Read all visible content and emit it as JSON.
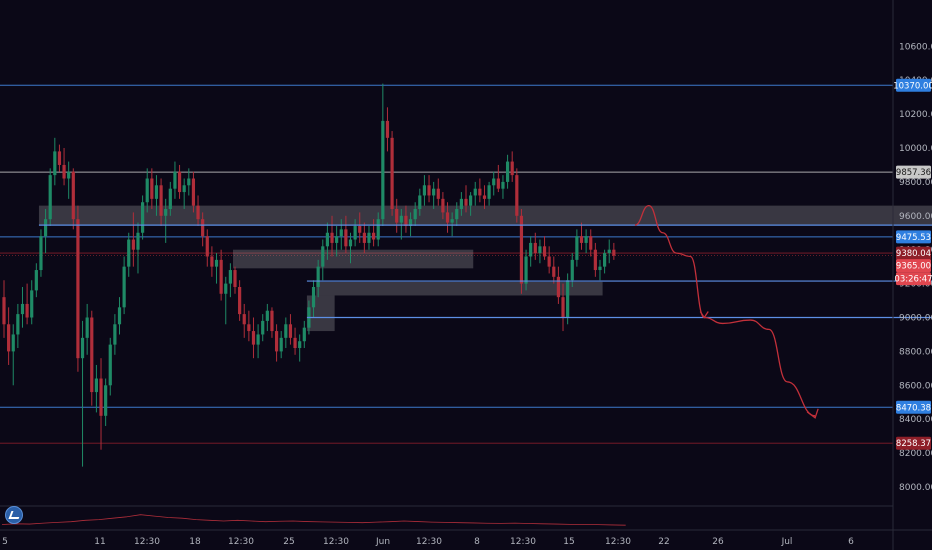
{
  "colors": {
    "background": "#0b0817",
    "up": "#1f8a66",
    "down": "#b02e3a",
    "blue_line": "#3f7fd6",
    "gray_line": "#c5c5c5",
    "red_line": "#8a1f2a",
    "zone": "#9a9aa0",
    "projection": "#c2303a"
  },
  "chart_data": {
    "type": "candlestick",
    "title": "",
    "y_axis": {
      "side": "right",
      "range": [
        7850,
        10720
      ],
      "ticks": [
        8000,
        8200,
        8400,
        8600,
        8800,
        9000,
        9200,
        9400,
        9600,
        9800,
        10000,
        10200,
        10400,
        10600
      ],
      "tick_labels": [
        "8000.00",
        "8200.00",
        "8400.00",
        "8600.00",
        "8800.00",
        "9000.00",
        "9200.00",
        "9400.00",
        "9600.00",
        "9800.00",
        "10000.00",
        "10200.00",
        "10400.00",
        "10600.00"
      ]
    },
    "x_axis": {
      "tick_labels": [
        "5",
        "11",
        "12:30",
        "18",
        "12:30",
        "25",
        "12:30",
        "Jun",
        "12:30",
        "8",
        "12:30",
        "15",
        "12:30",
        "22",
        "26",
        "Jul",
        "6"
      ]
    },
    "price_levels": [
      {
        "value": 10370.0,
        "label": "10370.00",
        "style": "blue"
      },
      {
        "value": 9857.36,
        "label": "9857.36",
        "style": "gray"
      },
      {
        "value": 9475.53,
        "label": "9475.53",
        "style": "blue"
      },
      {
        "value": 9380.04,
        "label": "9380.04",
        "style": "red"
      },
      {
        "value": 8470.38,
        "label": "8470.38",
        "style": "blue"
      },
      {
        "value": 8258.37,
        "label": "8258.37",
        "style": "red"
      }
    ],
    "current_price": {
      "value": 9365.0,
      "label": "9365.00",
      "countdown": "03:26:47"
    },
    "drawn_lines": [
      {
        "from_index": 8,
        "to_index": 205,
        "value": 9545
      },
      {
        "from_index": 66,
        "to_index": 205,
        "value": 9215
      },
      {
        "from_index": 66,
        "to_index": 205,
        "value": 9000
      }
    ],
    "zones": [
      {
        "from_index": 8,
        "to_index": 204,
        "low": 9545,
        "high": 9660
      },
      {
        "from_index": 50,
        "to_index": 102,
        "low": 9290,
        "high": 9400
      },
      {
        "from_index": 68,
        "to_index": 130,
        "low": 9130,
        "high": 9210
      },
      {
        "from_index": 66,
        "to_index": 72,
        "low": 8920,
        "high": 9130
      }
    ],
    "projection_path": [
      {
        "i": 137,
        "v": 9545
      },
      {
        "i": 140,
        "v": 9660
      },
      {
        "i": 143,
        "v": 9500
      },
      {
        "i": 146,
        "v": 9380
      },
      {
        "i": 149,
        "v": 9360
      },
      {
        "i": 152,
        "v": 9000
      },
      {
        "i": 156,
        "v": 8965
      },
      {
        "i": 162,
        "v": 8985
      },
      {
        "i": 166,
        "v": 8930
      },
      {
        "i": 170,
        "v": 8620
      },
      {
        "i": 176,
        "v": 8420
      }
    ],
    "candles": [
      [
        9120,
        9220,
        8880,
        8960
      ],
      [
        8960,
        9060,
        8720,
        8800
      ],
      [
        8800,
        8960,
        8600,
        8900
      ],
      [
        8900,
        9080,
        8820,
        9020
      ],
      [
        9020,
        9180,
        8940,
        9080
      ],
      [
        9080,
        9200,
        8960,
        9000
      ],
      [
        9000,
        9220,
        8960,
        9160
      ],
      [
        9160,
        9320,
        9120,
        9280
      ],
      [
        9280,
        9520,
        9240,
        9480
      ],
      [
        9480,
        9640,
        9380,
        9580
      ],
      [
        9580,
        9880,
        9540,
        9840
      ],
      [
        9840,
        10060,
        9780,
        9980
      ],
      [
        9980,
        10020,
        9860,
        9900
      ],
      [
        9900,
        10000,
        9780,
        9820
      ],
      [
        9820,
        9920,
        9700,
        9860
      ],
      [
        9860,
        9880,
        9520,
        9580
      ],
      [
        9580,
        9660,
        8680,
        8760
      ],
      [
        8760,
        8980,
        8120,
        8880
      ],
      [
        8880,
        9080,
        8780,
        9000
      ],
      [
        9000,
        9040,
        8480,
        8560
      ],
      [
        8560,
        8720,
        8440,
        8640
      ],
      [
        8640,
        8760,
        8220,
        8420
      ],
      [
        8420,
        8640,
        8360,
        8600
      ],
      [
        8600,
        8880,
        8540,
        8840
      ],
      [
        8840,
        9020,
        8780,
        8960
      ],
      [
        8960,
        9120,
        8900,
        9060
      ],
      [
        9060,
        9360,
        9020,
        9300
      ],
      [
        9300,
        9500,
        9240,
        9460
      ],
      [
        9460,
        9620,
        9300,
        9400
      ],
      [
        9400,
        9560,
        9260,
        9500
      ],
      [
        9500,
        9720,
        9460,
        9680
      ],
      [
        9680,
        9880,
        9620,
        9820
      ],
      [
        9820,
        9880,
        9640,
        9700
      ],
      [
        9700,
        9840,
        9600,
        9780
      ],
      [
        9780,
        9820,
        9540,
        9600
      ],
      [
        9600,
        9700,
        9440,
        9640
      ],
      [
        9640,
        9800,
        9600,
        9760
      ],
      [
        9760,
        9920,
        9700,
        9860
      ],
      [
        9860,
        9900,
        9700,
        9740
      ],
      [
        9740,
        9820,
        9640,
        9780
      ],
      [
        9780,
        9880,
        9720,
        9820
      ],
      [
        9820,
        9860,
        9620,
        9660
      ],
      [
        9660,
        9720,
        9540,
        9580
      ],
      [
        9580,
        9620,
        9420,
        9480
      ],
      [
        9480,
        9520,
        9300,
        9360
      ],
      [
        9360,
        9420,
        9240,
        9300
      ],
      [
        9300,
        9380,
        9200,
        9340
      ],
      [
        9340,
        9400,
        9100,
        9140
      ],
      [
        9140,
        9240,
        8960,
        9200
      ],
      [
        9200,
        9320,
        9120,
        9280
      ],
      [
        9280,
        9300,
        9140,
        9180
      ],
      [
        9180,
        9220,
        8980,
        9020
      ],
      [
        9020,
        9080,
        8880,
        8960
      ],
      [
        8960,
        9040,
        8860,
        8920
      ],
      [
        8920,
        9000,
        8760,
        8840
      ],
      [
        8840,
        8960,
        8760,
        8900
      ],
      [
        8900,
        9020,
        8860,
        8980
      ],
      [
        8980,
        9080,
        8920,
        9040
      ],
      [
        9040,
        9060,
        8880,
        8920
      ],
      [
        8920,
        8960,
        8740,
        8800
      ],
      [
        8800,
        8920,
        8760,
        8880
      ],
      [
        8880,
        9000,
        8820,
        8960
      ],
      [
        8960,
        9020,
        8840,
        8880
      ],
      [
        8880,
        8940,
        8780,
        8820
      ],
      [
        8820,
        8900,
        8740,
        8860
      ],
      [
        8860,
        8980,
        8820,
        8940
      ],
      [
        8940,
        9100,
        8900,
        9060
      ],
      [
        9060,
        9220,
        9000,
        9180
      ],
      [
        9180,
        9340,
        9120,
        9300
      ],
      [
        9300,
        9460,
        9220,
        9420
      ],
      [
        9420,
        9560,
        9340,
        9500
      ],
      [
        9500,
        9600,
        9360,
        9440
      ],
      [
        9440,
        9540,
        9360,
        9480
      ],
      [
        9480,
        9580,
        9400,
        9520
      ],
      [
        9520,
        9600,
        9380,
        9420
      ],
      [
        9420,
        9500,
        9320,
        9460
      ],
      [
        9460,
        9580,
        9420,
        9540
      ],
      [
        9540,
        9620,
        9440,
        9500
      ],
      [
        9500,
        9560,
        9380,
        9440
      ],
      [
        9440,
        9540,
        9400,
        9500
      ],
      [
        9500,
        9580,
        9420,
        9460
      ],
      [
        9460,
        9620,
        9420,
        9580
      ],
      [
        9580,
        10380,
        9540,
        10160
      ],
      [
        10160,
        10240,
        9980,
        10060
      ],
      [
        10060,
        10100,
        9600,
        9640
      ],
      [
        9640,
        9700,
        9500,
        9560
      ],
      [
        9560,
        9640,
        9460,
        9600
      ],
      [
        9600,
        9660,
        9500,
        9540
      ],
      [
        9540,
        9620,
        9480,
        9580
      ],
      [
        9580,
        9680,
        9540,
        9640
      ],
      [
        9640,
        9760,
        9600,
        9720
      ],
      [
        9720,
        9840,
        9660,
        9780
      ],
      [
        9780,
        9840,
        9680,
        9720
      ],
      [
        9720,
        9800,
        9640,
        9760
      ],
      [
        9760,
        9820,
        9660,
        9700
      ],
      [
        9700,
        9740,
        9580,
        9620
      ],
      [
        9620,
        9680,
        9500,
        9560
      ],
      [
        9560,
        9620,
        9480,
        9580
      ],
      [
        9580,
        9680,
        9540,
        9640
      ],
      [
        9640,
        9740,
        9600,
        9700
      ],
      [
        9700,
        9780,
        9620,
        9660
      ],
      [
        9660,
        9740,
        9600,
        9720
      ],
      [
        9720,
        9800,
        9660,
        9760
      ],
      [
        9760,
        9820,
        9680,
        9720
      ],
      [
        9720,
        9780,
        9640,
        9700
      ],
      [
        9700,
        9800,
        9660,
        9780
      ],
      [
        9780,
        9860,
        9720,
        9820
      ],
      [
        9820,
        9900,
        9740,
        9760
      ],
      [
        9760,
        9840,
        9700,
        9800
      ],
      [
        9800,
        9960,
        9760,
        9920
      ],
      [
        9920,
        9980,
        9800,
        9840
      ],
      [
        9840,
        9880,
        9560,
        9600
      ],
      [
        9600,
        9640,
        9140,
        9200
      ],
      [
        9200,
        9400,
        9160,
        9360
      ],
      [
        9360,
        9480,
        9300,
        9440
      ],
      [
        9440,
        9500,
        9340,
        9380
      ],
      [
        9380,
        9460,
        9320,
        9420
      ],
      [
        9420,
        9480,
        9340,
        9360
      ],
      [
        9360,
        9420,
        9260,
        9300
      ],
      [
        9300,
        9360,
        9200,
        9240
      ],
      [
        9240,
        9300,
        9080,
        9120
      ],
      [
        9120,
        9200,
        8920,
        9000
      ],
      [
        9000,
        9260,
        8960,
        9220
      ],
      [
        9220,
        9380,
        9180,
        9340
      ],
      [
        9340,
        9520,
        9300,
        9480
      ],
      [
        9480,
        9560,
        9400,
        9440
      ],
      [
        9440,
        9520,
        9380,
        9480
      ],
      [
        9480,
        9520,
        9360,
        9400
      ],
      [
        9400,
        9440,
        9240,
        9280
      ],
      [
        9280,
        9340,
        9220,
        9300
      ],
      [
        9300,
        9400,
        9260,
        9380
      ],
      [
        9380,
        9460,
        9320,
        9400
      ],
      [
        9400,
        9440,
        9340,
        9365
      ]
    ],
    "volume_profile": [
      0.25,
      0.3,
      0.28,
      0.35,
      0.4,
      0.45,
      0.55,
      0.6,
      0.7,
      0.8,
      0.95,
      0.85,
      0.75,
      0.7,
      0.6,
      0.55,
      0.5,
      0.55,
      0.5,
      0.45,
      0.48,
      0.5,
      0.46,
      0.44,
      0.42,
      0.4,
      0.38,
      0.42,
      0.45,
      0.5,
      0.46,
      0.42,
      0.4,
      0.38,
      0.36,
      0.34,
      0.33,
      0.35,
      0.32,
      0.3,
      0.28,
      0.26,
      0.25,
      0.24,
      0.22,
      0.2
    ]
  }
}
